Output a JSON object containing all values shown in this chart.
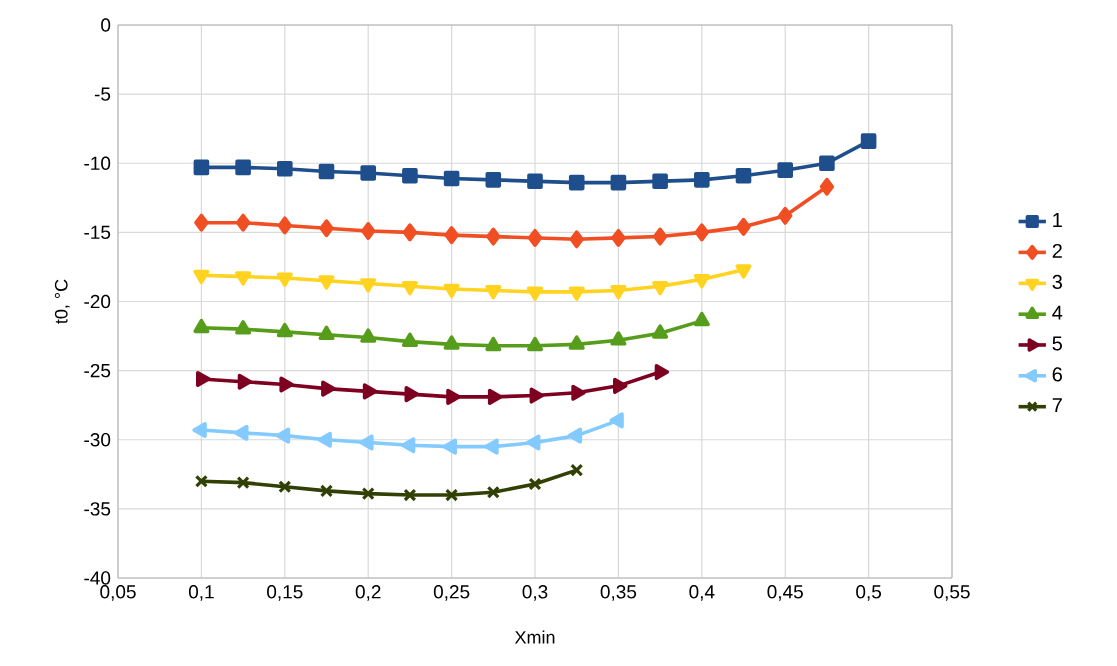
{
  "chart_data": {
    "type": "line",
    "xlabel": "Xmin",
    "ylabel": "t0, °C",
    "xlim": [
      0.05,
      0.55
    ],
    "ylim": [
      -40,
      0
    ],
    "xticks": [
      {
        "value": 0.05,
        "label": "0,05"
      },
      {
        "value": 0.1,
        "label": "0,1"
      },
      {
        "value": 0.15,
        "label": "0,15"
      },
      {
        "value": 0.2,
        "label": "0,2"
      },
      {
        "value": 0.25,
        "label": "0,25"
      },
      {
        "value": 0.3,
        "label": "0,3"
      },
      {
        "value": 0.35,
        "label": "0,35"
      },
      {
        "value": 0.4,
        "label": "0,4"
      },
      {
        "value": 0.45,
        "label": "0,45"
      },
      {
        "value": 0.5,
        "label": "0,5"
      },
      {
        "value": 0.55,
        "label": "0,55"
      }
    ],
    "yticks": [
      0,
      -5,
      -10,
      -15,
      -20,
      -25,
      -30,
      -35,
      -40
    ],
    "grid": true,
    "legend": "right",
    "line_style": "solid",
    "x": [
      0.1,
      0.125,
      0.15,
      0.175,
      0.2,
      0.225,
      0.25,
      0.275,
      0.3,
      0.325,
      0.35,
      0.375,
      0.4,
      0.425,
      0.45,
      0.475,
      0.5
    ],
    "series": [
      {
        "name": "1",
        "color": "#1f4e8c",
        "marker": "square",
        "values": [
          -10.3,
          -10.3,
          -10.4,
          -10.6,
          -10.7,
          -10.9,
          -11.1,
          -11.2,
          -11.3,
          -11.4,
          -11.4,
          -11.3,
          -11.2,
          -10.9,
          -10.5,
          -10.0,
          -8.4
        ]
      },
      {
        "name": "2",
        "color": "#f04e23",
        "marker": "diamond",
        "values": [
          -14.3,
          -14.3,
          -14.5,
          -14.7,
          -14.9,
          -15.0,
          -15.2,
          -15.3,
          -15.4,
          -15.5,
          -15.4,
          -15.3,
          -15.0,
          -14.6,
          -13.8,
          -11.7,
          null
        ]
      },
      {
        "name": "3",
        "color": "#ffd320",
        "marker": "triangle",
        "values": [
          -18.1,
          -18.2,
          -18.3,
          -18.5,
          -18.7,
          -18.9,
          -19.1,
          -19.2,
          -19.3,
          -19.3,
          -19.2,
          -18.9,
          -18.4,
          -17.7,
          null,
          null,
          null
        ]
      },
      {
        "name": "4",
        "color": "#579d1c",
        "marker": "triangle",
        "values": [
          -21.9,
          -22.0,
          -22.2,
          -22.4,
          -22.6,
          -22.9,
          -23.1,
          -23.2,
          -23.2,
          -23.1,
          -22.8,
          -22.3,
          -21.4,
          null,
          null,
          null,
          null
        ]
      },
      {
        "name": "5",
        "color": "#7e0021",
        "marker": "triangle",
        "values": [
          -25.6,
          -25.8,
          -26.0,
          -26.3,
          -26.5,
          -26.7,
          -26.9,
          -26.9,
          -26.8,
          -26.6,
          -26.1,
          -25.1,
          null,
          null,
          null,
          null,
          null
        ]
      },
      {
        "name": "6",
        "color": "#83caff",
        "marker": "triangle",
        "values": [
          -29.3,
          -29.5,
          -29.7,
          -30.0,
          -30.2,
          -30.4,
          -30.5,
          -30.5,
          -30.2,
          -29.7,
          -28.6,
          null,
          null,
          null,
          null,
          null,
          null
        ]
      },
      {
        "name": "7",
        "color": "#314004",
        "marker": "cross",
        "values": [
          -33.0,
          -33.1,
          -33.4,
          -33.7,
          -33.9,
          -34.0,
          -34.0,
          -33.8,
          -33.2,
          -32.2,
          null,
          null,
          null,
          null,
          null,
          null,
          null
        ]
      }
    ]
  }
}
